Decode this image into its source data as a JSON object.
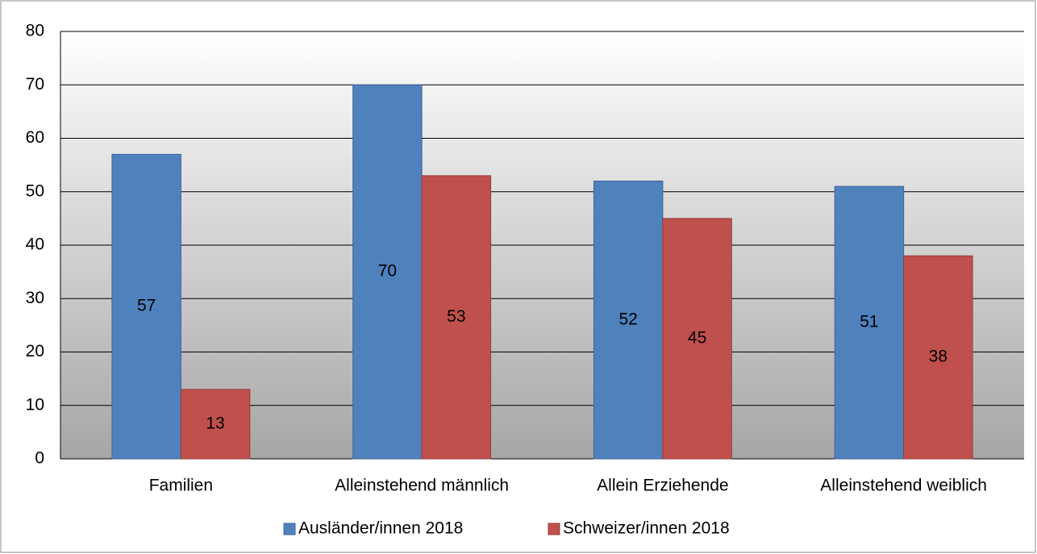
{
  "chart_data": {
    "type": "bar",
    "categories": [
      "Familien",
      "Alleinstehend männlich",
      "Allein Erziehende",
      "Alleinstehend weiblich"
    ],
    "series": [
      {
        "name": "Ausländer/innen 2018",
        "color": "#4f81bd",
        "values": [
          57,
          70,
          52,
          51
        ]
      },
      {
        "name": "Schweizer/innen 2018",
        "color": "#c0504d",
        "values": [
          13,
          53,
          45,
          38
        ]
      }
    ],
    "ylim": [
      0,
      80
    ],
    "yticks": [
      0,
      10,
      20,
      30,
      40,
      50,
      60,
      70,
      80
    ],
    "grid": true,
    "legend": "bottom"
  }
}
